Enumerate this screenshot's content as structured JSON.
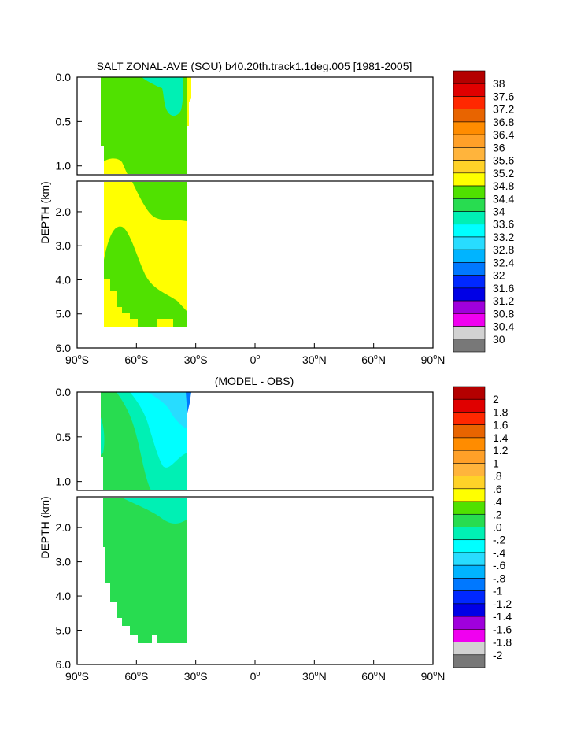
{
  "chart_data": [
    {
      "type": "heatmap",
      "title": "SALT ZONAL-AVE (SOU) b40.20th.track1.1deg.005 [1981-2005]",
      "ylabel": "DEPTH (km)",
      "xlabel": "",
      "x_ticks": [
        {
          "v": -90,
          "deg": "90",
          "hemi": "S"
        },
        {
          "v": -60,
          "deg": "60",
          "hemi": "S"
        },
        {
          "v": -30,
          "deg": "30",
          "hemi": "S"
        },
        {
          "v": 0,
          "deg": "0",
          "hemi": ""
        },
        {
          "v": 30,
          "deg": "30",
          "hemi": "N"
        },
        {
          "v": 60,
          "deg": "60",
          "hemi": "N"
        },
        {
          "v": 90,
          "deg": "90",
          "hemi": "N"
        }
      ],
      "xlim": [
        -90,
        90
      ],
      "upper_panel": {
        "ylim": [
          0.0,
          1.1
        ],
        "ticks": [
          "0.0",
          "0.5",
          "1.0"
        ],
        "tick_values": [
          0.0,
          0.5,
          1.0
        ]
      },
      "lower_panel": {
        "ylim": [
          1.1,
          6.0
        ],
        "ticks": [
          "2.0",
          "3.0",
          "4.0",
          "5.0",
          "6.0"
        ],
        "tick_values": [
          2.0,
          3.0,
          4.0,
          5.0,
          6.0
        ]
      },
      "colorbar": {
        "labels": [
          "38",
          "37.6",
          "37.2",
          "36.8",
          "36.4",
          "36",
          "35.6",
          "35.2",
          "34.8",
          "34.4",
          "34",
          "33.6",
          "33.2",
          "32.8",
          "32.4",
          "32",
          "31.6",
          "31.2",
          "30.8",
          "30.4",
          "30"
        ],
        "colors": [
          "#b40000",
          "#e00000",
          "#ff2800",
          "#e86400",
          "#ff8c00",
          "#ffa028",
          "#ffb43c",
          "#ffd228",
          "#ffff00",
          "#50e100",
          "#28dc50",
          "#00f0b4",
          "#00ffff",
          "#28dcff",
          "#00b4ff",
          "#0078ff",
          "#0028ff",
          "#0000e6",
          "#a000dc",
          "#f000f0",
          "#d2d2d2",
          "#787878"
        ]
      },
      "regions": [
        {
          "value_range": "34.4-34.8",
          "lat_range": [
            -75,
            -34
          ],
          "depth_range": [
            0.0,
            5.4
          ]
        },
        {
          "value_range": "34.0-34.4",
          "lat_range": [
            -50,
            -42
          ],
          "depth_range": [
            0.0,
            0.35
          ]
        },
        {
          "value_range": "34.8-35.2",
          "lat_range": [
            -74,
            -34
          ],
          "depth_range": [
            0.8,
            5.4
          ]
        }
      ]
    },
    {
      "type": "heatmap",
      "title": "(MODEL - OBS)",
      "ylabel": "DEPTH (km)",
      "xlabel": "",
      "x_ticks": [
        {
          "v": -90,
          "deg": "90",
          "hemi": "S"
        },
        {
          "v": -60,
          "deg": "60",
          "hemi": "S"
        },
        {
          "v": -30,
          "deg": "30",
          "hemi": "S"
        },
        {
          "v": 0,
          "deg": "0",
          "hemi": ""
        },
        {
          "v": 30,
          "deg": "30",
          "hemi": "N"
        },
        {
          "v": 60,
          "deg": "60",
          "hemi": "N"
        },
        {
          "v": 90,
          "deg": "90",
          "hemi": "N"
        }
      ],
      "xlim": [
        -90,
        90
      ],
      "upper_panel": {
        "ylim": [
          0.0,
          1.1
        ],
        "ticks": [
          "0.0",
          "0.5",
          "1.0"
        ],
        "tick_values": [
          0.0,
          0.5,
          1.0
        ]
      },
      "lower_panel": {
        "ylim": [
          1.1,
          6.0
        ],
        "ticks": [
          "2.0",
          "3.0",
          "4.0",
          "5.0",
          "6.0"
        ],
        "tick_values": [
          2.0,
          3.0,
          4.0,
          5.0,
          6.0
        ]
      },
      "colorbar": {
        "labels": [
          "2",
          "1.8",
          "1.6",
          "1.4",
          "1.2",
          "1",
          ".8",
          ".6",
          ".4",
          ".2",
          ".0",
          "-.2",
          "-.4",
          "-.6",
          "-.8",
          "-1",
          "-1.2",
          "-1.4",
          "-1.6",
          "-1.8",
          "-2"
        ],
        "colors": [
          "#b40000",
          "#e00000",
          "#ff2800",
          "#e86400",
          "#ff8c00",
          "#ffa028",
          "#ffb43c",
          "#ffd228",
          "#ffff00",
          "#50e100",
          "#28dc50",
          "#00f0b4",
          "#00ffff",
          "#28dcff",
          "#00b4ff",
          "#0078ff",
          "#0028ff",
          "#0000e6",
          "#a000dc",
          "#f000f0",
          "#d2d2d2",
          "#787878"
        ]
      },
      "regions": [
        {
          "value_range": ".0-.2",
          "lat_range": [
            -75,
            -34
          ],
          "depth_range": [
            0.0,
            5.4
          ]
        },
        {
          "value_range": "-.2-.0",
          "lat_range": [
            -60,
            -34
          ],
          "depth_range": [
            0.0,
            1.7
          ]
        },
        {
          "value_range": "-.4--.2",
          "lat_range": [
            -50,
            -34
          ],
          "depth_range": [
            0.0,
            0.9
          ]
        }
      ]
    }
  ]
}
